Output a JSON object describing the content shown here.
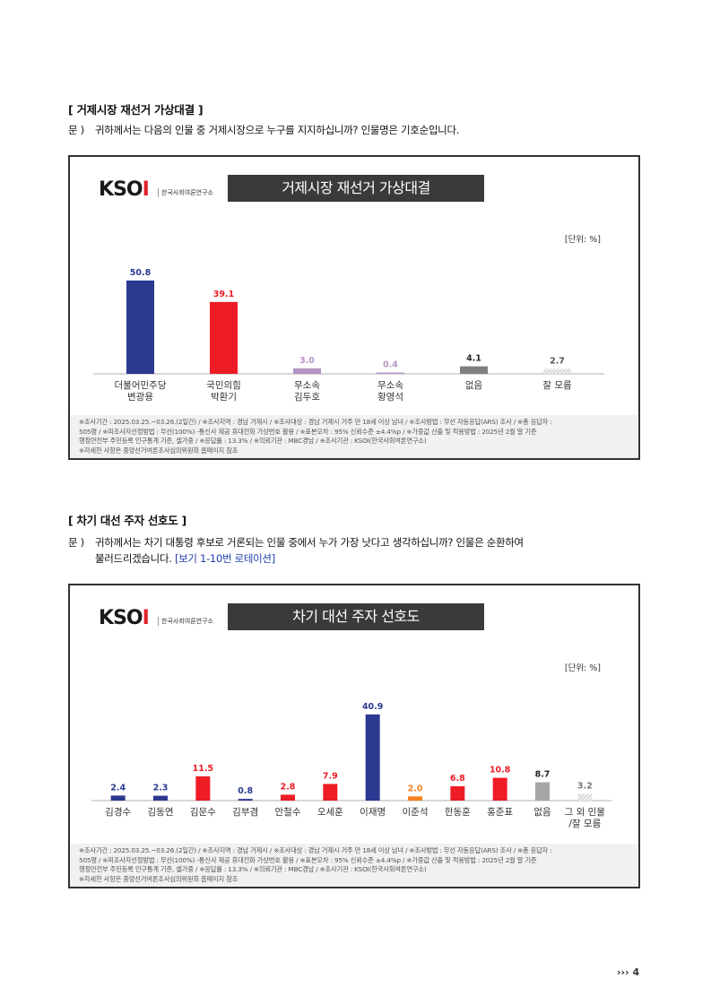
{
  "section1": {
    "heading": "[ 거제시장 재선거 가상대결 ]",
    "q_label": "문 )",
    "q_text": "귀하께서는 다음의 인물 중 거제시장으로 누구를 지지하십니까? 인물명은 기호순입니다."
  },
  "section2": {
    "heading": "[ 차기 대선 주자 선호도 ]",
    "q_label": "문 )",
    "q_text": "귀하께서는 차기 대통령 후보로 거론되는 인물 중에서 누가 가장 낫다고 생각하십니까? 인물은 순환하여",
    "q_text2": "불러드리겠습니다. ",
    "q_rotation": "[보기 1-10번 로테이션]"
  },
  "logo": {
    "mark": "KSOI",
    "sub": "한국사회여론연구소"
  },
  "footnote": {
    "line1": "※조사기간 : 2025.03.25.~03.26.(2일간) / ※조사지역 : 경남 거제시 / ※조사대상 : 경남 거제시 거주 만 18세 이상 남녀 / ※조사방법 : 무선 자동응답(ARS) 조사 / ※총 응답자 :",
    "line2": "505명 / ※피조사자선정방법 : 무선(100%) -통신사 제공 휴대전화 가상번호 활용 / ※표본오차 : 95% 신뢰수준 ±4.4%p / ※가중값 산출 및 적용방법 : 2025년 2월 말 기준",
    "line3": "행정안전부 주민등록 인구통계 기준, 셀가중 / ※응답률 : 13.3% / ※의뢰기관 : MBC경남 / ※조사기관 : KSOI(한국사회여론연구소)",
    "line4": "※자세한 사항은 중앙선거여론조사심의위원회 홈페이지 참조"
  },
  "page_number": "4",
  "chart_data": [
    {
      "type": "bar",
      "title": "거제시장 재선거 가상대결",
      "unit": "[단위: %]",
      "categories": [
        [
          "더불어민주당",
          "변광용"
        ],
        [
          "국민의힘",
          "박환기"
        ],
        [
          "무소속",
          "김두호"
        ],
        [
          "무소속",
          "황영석"
        ],
        [
          "없음"
        ],
        [
          "잘 모름"
        ]
      ],
      "values": [
        50.8,
        39.1,
        3.0,
        0.4,
        4.1,
        2.7
      ],
      "colors": [
        "#2b3990",
        "#ee1c25",
        "#b595c4",
        "#b595c4",
        "#808080",
        "#c8c8c8"
      ],
      "label_colors": [
        "#2b3990",
        "#ee1c25",
        "#b595c4",
        "#b595c4",
        "#222222",
        "#555555"
      ],
      "hatched": [
        false,
        false,
        false,
        false,
        false,
        true
      ]
    },
    {
      "type": "bar",
      "title": "차기 대선 주자 선호도",
      "unit": "[단위: %]",
      "categories": [
        [
          "김경수"
        ],
        [
          "김동연"
        ],
        [
          "김문수"
        ],
        [
          "김부겸"
        ],
        [
          "안철수"
        ],
        [
          "오세훈"
        ],
        [
          "이재명"
        ],
        [
          "이준석"
        ],
        [
          "한동훈"
        ],
        [
          "홍준표"
        ],
        [
          "없음"
        ],
        [
          "그 외 인물",
          "/잘 모름"
        ]
      ],
      "values": [
        2.4,
        2.3,
        11.5,
        0.8,
        2.8,
        7.9,
        40.9,
        2.0,
        6.8,
        10.8,
        8.7,
        3.2
      ],
      "colors": [
        "#2b3990",
        "#2b3990",
        "#ee1c25",
        "#2b3990",
        "#ee1c25",
        "#ee1c25",
        "#2b3990",
        "#f58220",
        "#ee1c25",
        "#ee1c25",
        "#a6a6a6",
        "#d8d8d8"
      ],
      "label_colors": [
        "#2b3990",
        "#2b3990",
        "#ee1c25",
        "#2b3990",
        "#ee1c25",
        "#ee1c25",
        "#2b3990",
        "#f58220",
        "#ee1c25",
        "#ee1c25",
        "#222222",
        "#777777"
      ],
      "hatched": [
        false,
        false,
        false,
        false,
        false,
        false,
        false,
        false,
        false,
        false,
        false,
        true
      ]
    }
  ]
}
